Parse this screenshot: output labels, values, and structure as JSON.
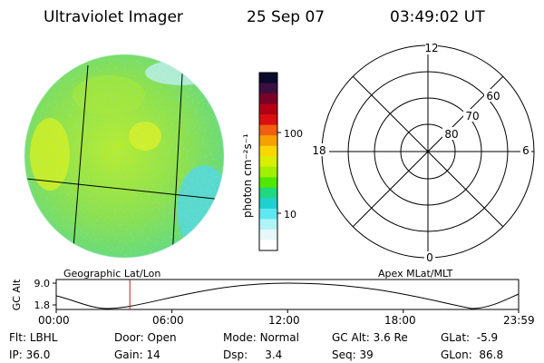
{
  "header": {
    "title": "Ultraviolet Imager",
    "date": "25 Sep 07",
    "time": "03:49:02 UT"
  },
  "colorbar": {
    "unit_label": "photon cm⁻²s⁻¹",
    "ticks": [
      "100",
      "10"
    ],
    "colors": [
      "#0a0a2a",
      "#3a1040",
      "#7a0028",
      "#b40014",
      "#dc1010",
      "#f06010",
      "#f8a000",
      "#f8d800",
      "#d8f000",
      "#a0f000",
      "#50e800",
      "#20d880",
      "#20d0d0",
      "#60e8f0",
      "#b0f4f8",
      "#e8f8f8",
      "#ffffff"
    ]
  },
  "polar": {
    "lat_labels": [
      "60",
      "70",
      "80"
    ],
    "mlt_labels": {
      "top": "12",
      "left": "18",
      "right": "6",
      "bottom": "0"
    }
  },
  "orbit_panel": {
    "ylabel": "GC Alt",
    "y_ticks": [
      "9.0",
      "1.8"
    ],
    "left_title": "Geographic Lat/Lon",
    "right_title": "Apex MLat/MLT",
    "x_ticks": [
      "00:00",
      "06:00",
      "12:00",
      "18:00",
      "23:59"
    ],
    "marker_time": "03:49"
  },
  "info": {
    "row1": [
      {
        "label": "Flt:",
        "value": "LBHL"
      },
      {
        "label": "Door:",
        "value": "Open"
      },
      {
        "label": "Mode:",
        "value": "Normal"
      },
      {
        "label": "GC Alt:",
        "value": "3.6 Re"
      },
      {
        "label": "GLat:",
        "value": "-5.9"
      }
    ],
    "row2": [
      {
        "label": "IP:",
        "value": "36.0"
      },
      {
        "label": "Gain:",
        "value": "14"
      },
      {
        "label": "Dsp:",
        "value": "3.4"
      },
      {
        "label": "Seq:",
        "value": "39"
      },
      {
        "label": "GLon:",
        "value": "86.8"
      }
    ]
  }
}
